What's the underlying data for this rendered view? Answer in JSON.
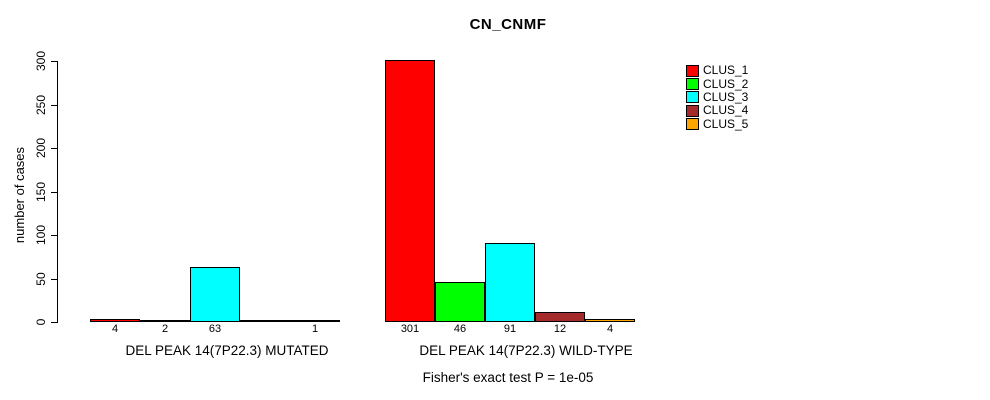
{
  "chart_data": {
    "type": "bar",
    "title": "CN_CNMF",
    "ylabel": "number of cases",
    "ylim": [
      0,
      300
    ],
    "yticks": [
      0,
      50,
      100,
      150,
      200,
      250,
      300
    ],
    "grid": false,
    "legend_position": "right-outside",
    "categories": [
      "DEL PEAK 14(7P22.3) MUTATED",
      "DEL PEAK 14(7P22.3) WILD-TYPE"
    ],
    "series": [
      {
        "name": "CLUS_1",
        "color": "#ff0000",
        "values": [
          4,
          301
        ]
      },
      {
        "name": "CLUS_2",
        "color": "#00ff00",
        "values": [
          2,
          46
        ]
      },
      {
        "name": "CLUS_3",
        "color": "#00ffff",
        "values": [
          63,
          91
        ]
      },
      {
        "name": "CLUS_4",
        "color": "#a52a2a",
        "values": [
          0,
          12
        ]
      },
      {
        "name": "CLUS_5",
        "color": "#ffa500",
        "values": [
          1,
          4
        ]
      }
    ],
    "bar_labels": [
      [
        "4",
        "2",
        "63",
        "",
        "1"
      ],
      [
        "301",
        "46",
        "91",
        "12",
        "4"
      ]
    ],
    "annotation": "Fisher's exact test P = 1e-05"
  }
}
